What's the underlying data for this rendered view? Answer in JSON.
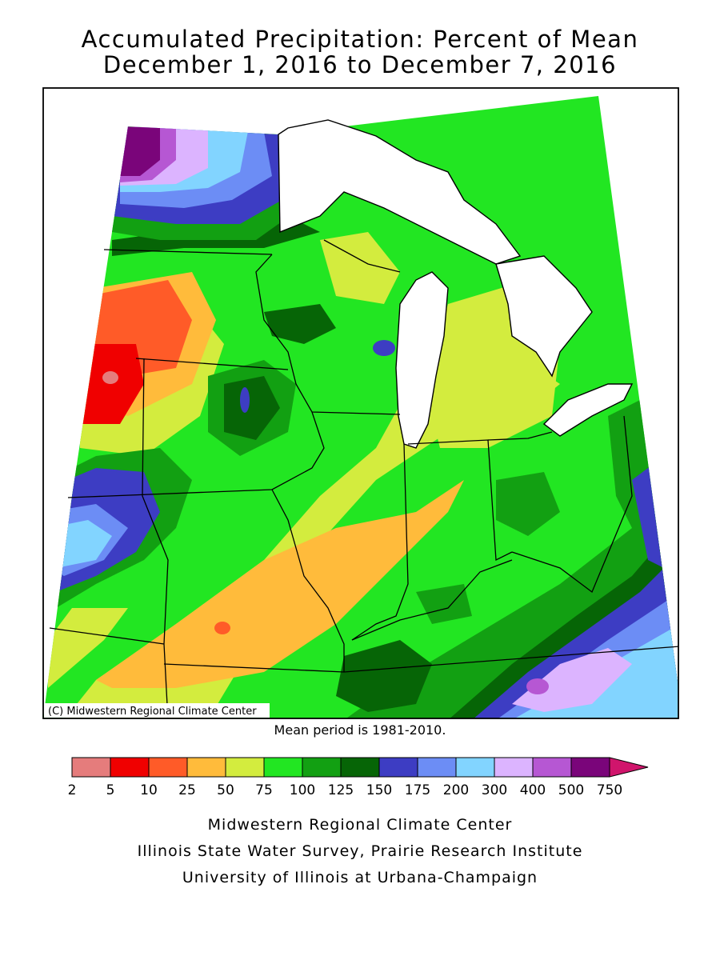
{
  "title": {
    "line1": "Accumulated Precipitation: Percent of Mean",
    "line2": "December 1, 2016 to December 7, 2016"
  },
  "map": {
    "copyright": "(C) Midwestern Regional Climate Center",
    "mean_period": "Mean period is 1981-2010."
  },
  "legend": {
    "breaks": [
      "2",
      "5",
      "10",
      "25",
      "50",
      "75",
      "100",
      "125",
      "150",
      "175",
      "200",
      "300",
      "400",
      "500",
      "750"
    ],
    "colors": [
      "#e57c7c",
      "#f00000",
      "#ff5b28",
      "#ffbb3b",
      "#d3ec3e",
      "#22e622",
      "#12a012",
      "#066506",
      "#3d3dc3",
      "#6c8df5",
      "#82d4ff",
      "#dcb4ff",
      "#b657d3",
      "#7a057a",
      "#d0156c"
    ]
  },
  "credits": {
    "line1": "Midwestern Regional Climate Center",
    "line2": "Illinois State Water Survey, Prairie Research Institute",
    "line3": "University of Illinois at Urbana-Champaign"
  }
}
